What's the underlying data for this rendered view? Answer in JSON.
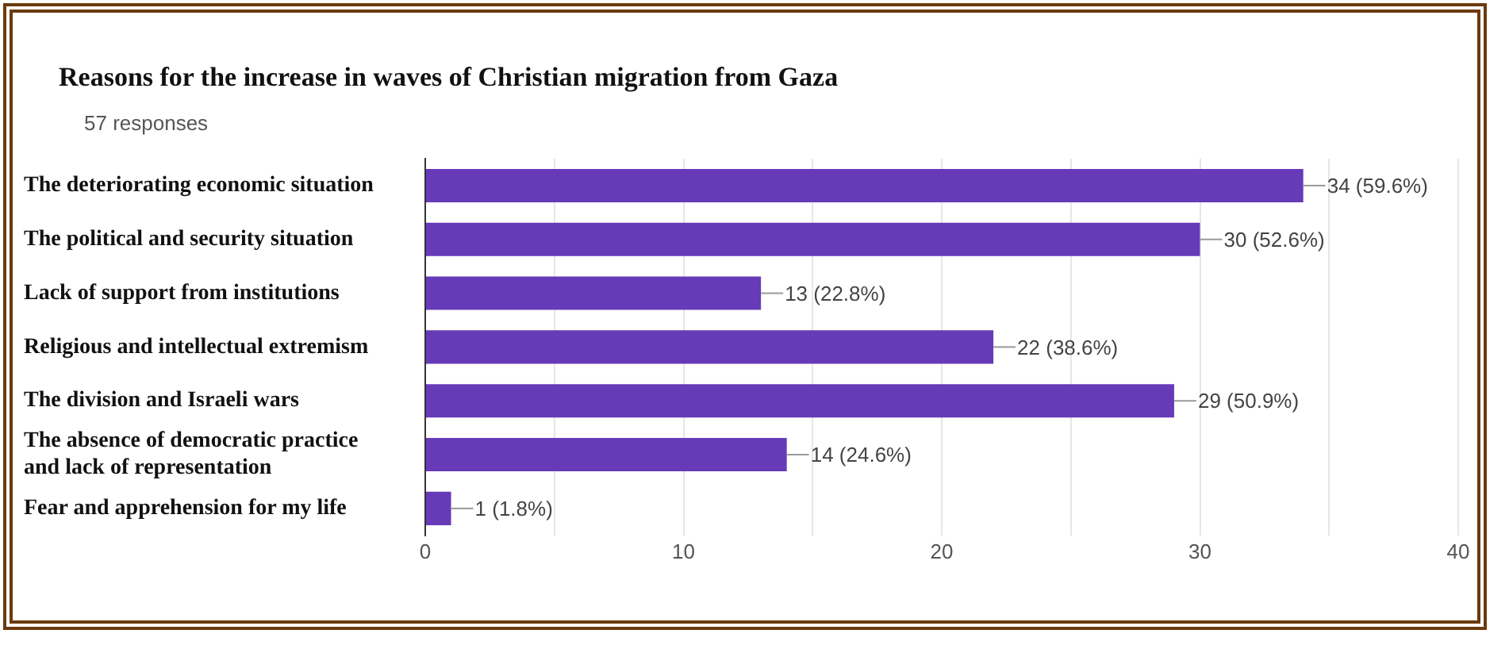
{
  "chart_data": {
    "type": "bar",
    "orientation": "horizontal",
    "title": "Reasons for the increase in waves of Christian migration from Gaza",
    "subtitle": "57 responses",
    "categories": [
      "The deteriorating economic situation",
      "The political and security situation",
      "Lack of support from institutions",
      "Religious and intellectual extremism",
      "The division and Israeli wars",
      "The absence of democratic practice\nand lack of representation",
      "Fear and apprehension for my life"
    ],
    "values": [
      34,
      30,
      13,
      22,
      29,
      14,
      1
    ],
    "value_labels": [
      "34 (59.6%)",
      "30 (52.6%)",
      "13 (22.8%)",
      "22 (38.6%)",
      "29 (50.9%)",
      "14 (24.6%)",
      "1 (1.8%)"
    ],
    "color": "#673ab7",
    "xlim": [
      0,
      40
    ],
    "xticks": [
      0,
      {
        "value": 5,
        "label": null
      },
      10,
      {
        "value": 15,
        "label": null
      },
      20,
      {
        "value": 25,
        "label": null
      },
      30,
      {
        "value": 35,
        "label": null
      },
      40
    ],
    "grid": true,
    "legend": false
  }
}
